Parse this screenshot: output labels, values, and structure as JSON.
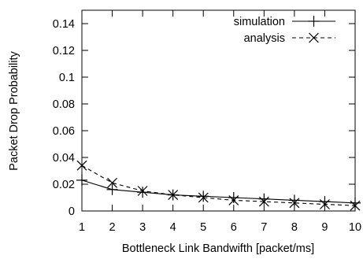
{
  "chart_data": {
    "type": "line",
    "title": "",
    "xlabel": "Bottleneck Link Bandwifth [packet/ms]",
    "ylabel": "Packet Drop Probability",
    "xlim": [
      1,
      10
    ],
    "ylim": [
      0,
      0.15
    ],
    "x_ticks": [
      "1",
      "2",
      "3",
      "4",
      "5",
      "6",
      "7",
      "8",
      "9",
      "10"
    ],
    "y_ticks": [
      "0",
      "0.02",
      "0.04",
      "0.06",
      "0.08",
      "0.1",
      "0.12",
      "0.14"
    ],
    "grid": false,
    "legend_position": "top-right",
    "x": [
      1,
      2,
      3,
      4,
      5,
      6,
      7,
      8,
      9,
      10
    ],
    "series": [
      {
        "name": "simulation",
        "line_style": "solid",
        "marker": "plus",
        "color": "#000000",
        "values": [
          0.023,
          0.016,
          0.014,
          0.012,
          0.011,
          0.01,
          0.009,
          0.008,
          0.007,
          0.006
        ]
      },
      {
        "name": "analysis",
        "line_style": "dashed",
        "marker": "x",
        "color": "#000000",
        "values": [
          0.034,
          0.021,
          0.015,
          0.012,
          0.01,
          0.008,
          0.007,
          0.006,
          0.005,
          0.004
        ]
      }
    ]
  }
}
